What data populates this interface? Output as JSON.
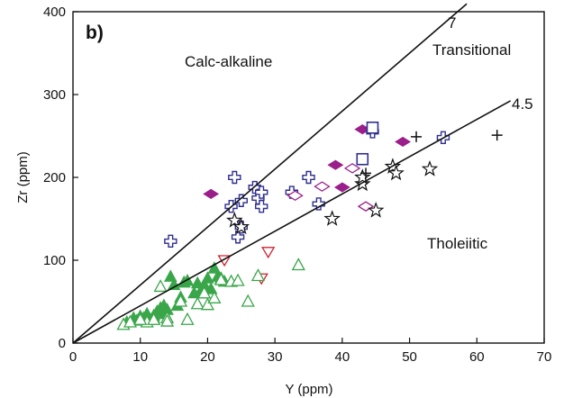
{
  "chart_data": {
    "type": "scatter",
    "panel_label": "b)",
    "xlabel": "Y (ppm)",
    "ylabel": "Zr (ppm)",
    "xlim": [
      0,
      70
    ],
    "ylim": [
      0,
      400
    ],
    "xticks": [
      "0",
      "10",
      "20",
      "30",
      "40",
      "50",
      "60",
      "70"
    ],
    "yticks": [
      "0",
      "100",
      "200",
      "300",
      "400"
    ],
    "grid": false,
    "region_labels": {
      "calc_alkaline": "Calc-alkaline",
      "transitional": "Transitional",
      "tholeiitic": "Tholeiitic"
    },
    "reference_lines": [
      {
        "label": "7",
        "slope": 7,
        "x_end": 58.5
      },
      {
        "label": "4.5",
        "slope": 4.5,
        "x_end": 65
      }
    ],
    "colors": {
      "purple": "#2e2e8f",
      "magenta": "#9b1f8a",
      "green": "#3aa64a",
      "red": "#d0202e",
      "black": "#111111"
    },
    "series": [
      {
        "marker": "open-cross",
        "color": "#2e2e8f",
        "points": [
          [
            14.5,
            123
          ],
          [
            24,
            200
          ],
          [
            23.5,
            165
          ],
          [
            25,
            172
          ],
          [
            24.5,
            128
          ],
          [
            25,
            140
          ],
          [
            27,
            188
          ],
          [
            27.5,
            175
          ],
          [
            28,
            182
          ],
          [
            28,
            165
          ],
          [
            32.5,
            182
          ],
          [
            35,
            200
          ],
          [
            36.5,
            168
          ],
          [
            44.5,
            255
          ],
          [
            55,
            248
          ]
        ]
      },
      {
        "marker": "filled-diamond",
        "color": "#9b1f8a",
        "points": [
          [
            20.5,
            180
          ],
          [
            39,
            215
          ],
          [
            40,
            188
          ],
          [
            43,
            258
          ],
          [
            49,
            243
          ]
        ]
      },
      {
        "marker": "open-diamond",
        "color": "#9b1f8a",
        "points": [
          [
            33,
            178
          ],
          [
            37,
            189
          ],
          [
            41.5,
            211
          ],
          [
            43.5,
            165
          ]
        ]
      },
      {
        "marker": "open-square",
        "color": "#2e2e8f",
        "points": [
          [
            43,
            222
          ],
          [
            44.5,
            260
          ]
        ]
      },
      {
        "marker": "open-star",
        "color": "#111111",
        "points": [
          [
            24,
            148
          ],
          [
            25,
            140
          ],
          [
            38.5,
            150
          ],
          [
            43,
            192
          ],
          [
            43,
            200
          ],
          [
            45,
            160
          ],
          [
            47.5,
            213
          ],
          [
            48,
            205
          ],
          [
            53,
            210
          ]
        ]
      },
      {
        "marker": "plus",
        "color": "#111111",
        "points": [
          [
            43.5,
            205
          ],
          [
            51,
            249
          ],
          [
            63,
            251
          ]
        ]
      },
      {
        "marker": "open-triangle-down",
        "color": "#d0202e",
        "points": [
          [
            22.5,
            100
          ],
          [
            28,
            78
          ],
          [
            29,
            110
          ]
        ]
      },
      {
        "marker": "filled-triangle",
        "color": "#3aa64a",
        "points": [
          [
            8,
            25
          ],
          [
            9,
            30
          ],
          [
            9.5,
            27
          ],
          [
            10,
            32
          ],
          [
            10.5,
            30
          ],
          [
            11,
            35
          ],
          [
            11.5,
            28
          ],
          [
            12,
            33
          ],
          [
            12.5,
            38
          ],
          [
            13,
            42
          ],
          [
            13.5,
            35
          ],
          [
            14,
            40
          ],
          [
            14.5,
            80
          ],
          [
            15,
            70
          ],
          [
            15.5,
            45
          ],
          [
            16,
            55
          ],
          [
            16.5,
            73
          ],
          [
            17,
            75
          ],
          [
            18,
            60
          ],
          [
            19,
            63
          ],
          [
            19.5,
            70
          ],
          [
            20,
            78
          ],
          [
            20.5,
            65
          ],
          [
            21,
            90
          ],
          [
            21.5,
            80
          ],
          [
            22,
            78
          ],
          [
            22.5,
            74
          ],
          [
            18.5,
            72
          ],
          [
            13.5,
            45
          ],
          [
            12,
            30
          ]
        ]
      },
      {
        "marker": "open-triangle",
        "color": "#3aa64a",
        "points": [
          [
            7.5,
            22
          ],
          [
            8.5,
            25
          ],
          [
            11,
            25
          ],
          [
            12,
            28
          ],
          [
            13,
            68
          ],
          [
            14,
            30
          ],
          [
            16,
            50
          ],
          [
            17,
            28
          ],
          [
            18.5,
            47
          ],
          [
            19.5,
            60
          ],
          [
            20,
            46
          ],
          [
            21,
            54
          ],
          [
            22,
            76
          ],
          [
            23.5,
            74
          ],
          [
            24.5,
            75
          ],
          [
            26,
            50
          ],
          [
            27.5,
            81
          ],
          [
            33.5,
            94
          ],
          [
            14,
            26
          ],
          [
            10,
            28
          ]
        ]
      }
    ]
  }
}
